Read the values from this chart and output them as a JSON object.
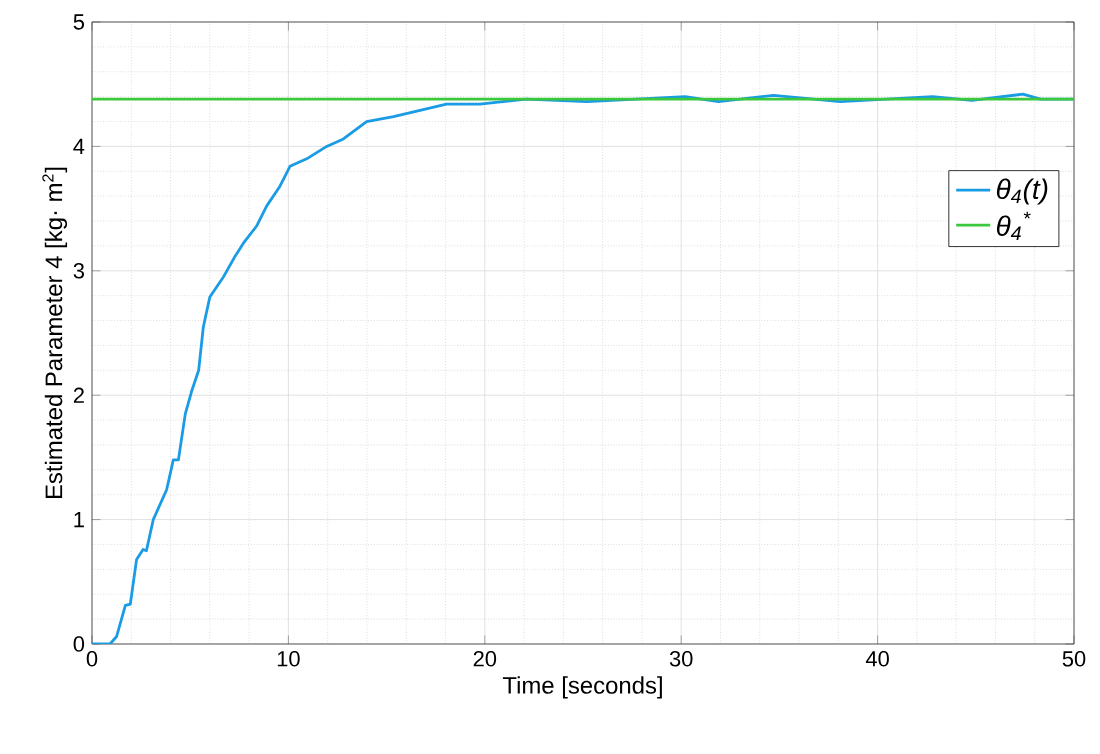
{
  "chart_data": {
    "type": "line",
    "xlabel": "Time [seconds]",
    "ylabel": "Estimated Parameter 4 [kg· m$^{2}$]",
    "xlim": [
      0,
      50
    ],
    "ylim": [
      0,
      5
    ],
    "xticks": [
      0,
      10,
      20,
      30,
      40,
      50
    ],
    "yticks": [
      0,
      1,
      2,
      3,
      4,
      5
    ],
    "grid": true,
    "legend": "right",
    "marker": "none",
    "line_style": "solid",
    "series": [
      {
        "name": "θ$_{4}$(t)",
        "color": "#1a9be6",
        "x": [
          0,
          0.92,
          1.25,
          1.7,
          1.95,
          2.27,
          2.6,
          2.77,
          3.12,
          3.8,
          4.14,
          4.4,
          4.75,
          5.09,
          5.43,
          5.67,
          6.0,
          6.69,
          7.26,
          7.7,
          8.38,
          8.89,
          9.57,
          10.08,
          10.93,
          11.95,
          12.8,
          13.98,
          15.35,
          16.7,
          18.05,
          19.75,
          22.1,
          25.2,
          30.2,
          31.9,
          34.7,
          38.1,
          42.8,
          44.8,
          47.4,
          48.3,
          50
        ],
        "values": [
          0,
          0,
          0.06,
          0.31,
          0.32,
          0.68,
          0.76,
          0.75,
          1.0,
          1.24,
          1.48,
          1.48,
          1.85,
          2.04,
          2.2,
          2.55,
          2.79,
          2.95,
          3.11,
          3.22,
          3.36,
          3.52,
          3.68,
          3.84,
          3.9,
          4.0,
          4.06,
          4.2,
          4.24,
          4.29,
          4.34,
          4.34,
          4.38,
          4.36,
          4.4,
          4.36,
          4.41,
          4.36,
          4.4,
          4.37,
          4.42,
          4.38,
          4.38
        ]
      },
      {
        "name": "θ$_{4}$$^{*}$",
        "color": "#3cc83c",
        "x": [
          0,
          50
        ],
        "values": [
          4.38,
          4.38
        ]
      }
    ]
  }
}
